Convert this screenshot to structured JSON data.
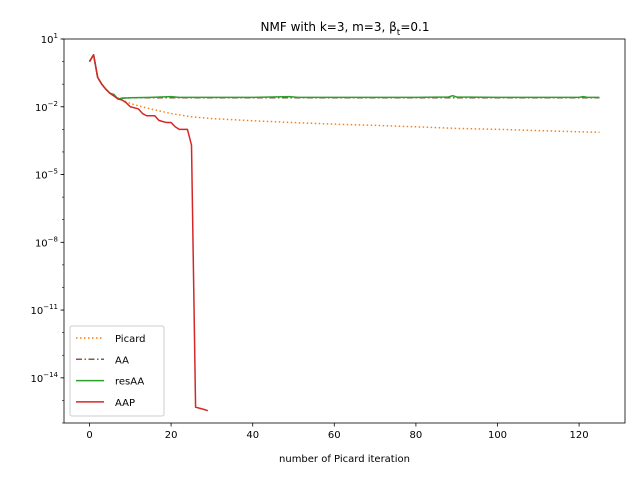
{
  "chart_data": {
    "type": "line",
    "title": "NMF with k=3, m=3,  β",
    "title_sub": "t",
    "title_tail": "=0.1",
    "xlabel": "number of Picard iteration",
    "ylabel": "",
    "yscale": "log",
    "xlim": [
      -6.25,
      131.25
    ],
    "ylim": [
      1e-16,
      10
    ],
    "xticks": [
      0,
      20,
      40,
      60,
      80,
      100,
      120
    ],
    "yticks": [
      {
        "value": 10,
        "base": "10",
        "exp": "1"
      },
      {
        "value": 0.01,
        "base": "10",
        "exp": "−2"
      },
      {
        "value": 1e-05,
        "base": "10",
        "exp": "−5"
      },
      {
        "value": 1e-08,
        "base": "10",
        "exp": "−8"
      },
      {
        "value": 1e-11,
        "base": "10",
        "exp": "−11"
      },
      {
        "value": 1e-14,
        "base": "10",
        "exp": "−14"
      }
    ],
    "grid": false,
    "legend_position": "lower-left",
    "series": [
      {
        "name": "Picard",
        "color": "#ff7f0e",
        "dash": "dotted",
        "points": [
          [
            0,
            1.0
          ],
          [
            1,
            2.0
          ],
          [
            2,
            0.2
          ],
          [
            3,
            0.1
          ],
          [
            4,
            0.06
          ],
          [
            5,
            0.04
          ],
          [
            6,
            0.03
          ],
          [
            8,
            0.02
          ],
          [
            10,
            0.014
          ],
          [
            12,
            0.011
          ],
          [
            15,
            0.008
          ],
          [
            20,
            0.005
          ],
          [
            25,
            0.0036
          ],
          [
            30,
            0.003
          ],
          [
            40,
            0.0024
          ],
          [
            50,
            0.002
          ],
          [
            60,
            0.0017
          ],
          [
            70,
            0.0015
          ],
          [
            80,
            0.0013
          ],
          [
            90,
            0.0011
          ],
          [
            100,
            0.001
          ],
          [
            110,
            0.00088
          ],
          [
            120,
            0.00078
          ],
          [
            125,
            0.00074
          ]
        ]
      },
      {
        "name": "AA",
        "color": "#8c564b",
        "dash": "dashdot",
        "points": [
          [
            0,
            1.0
          ],
          [
            1,
            2.0
          ],
          [
            2,
            0.2
          ],
          [
            3,
            0.1
          ],
          [
            4,
            0.06
          ],
          [
            5,
            0.04
          ],
          [
            6,
            0.03
          ],
          [
            7,
            0.022
          ],
          [
            8,
            0.024
          ],
          [
            10,
            0.025
          ],
          [
            20,
            0.025
          ],
          [
            30,
            0.025
          ],
          [
            40,
            0.025
          ],
          [
            50,
            0.025
          ],
          [
            60,
            0.025
          ],
          [
            70,
            0.025
          ],
          [
            80,
            0.025
          ],
          [
            90,
            0.025
          ],
          [
            100,
            0.025
          ],
          [
            110,
            0.025
          ],
          [
            120,
            0.025
          ],
          [
            125,
            0.025
          ]
        ]
      },
      {
        "name": "resAA",
        "color": "#2ca02c",
        "dash": "solid",
        "points": [
          [
            0,
            1.0
          ],
          [
            1,
            2.0
          ],
          [
            2,
            0.2
          ],
          [
            3,
            0.1
          ],
          [
            4,
            0.06
          ],
          [
            5,
            0.04
          ],
          [
            6,
            0.035
          ],
          [
            7,
            0.022
          ],
          [
            8,
            0.024
          ],
          [
            10,
            0.025
          ],
          [
            15,
            0.026
          ],
          [
            20,
            0.028
          ],
          [
            22,
            0.026
          ],
          [
            30,
            0.026
          ],
          [
            40,
            0.026
          ],
          [
            49,
            0.028
          ],
          [
            51,
            0.026
          ],
          [
            60,
            0.026
          ],
          [
            70,
            0.026
          ],
          [
            80,
            0.026
          ],
          [
            88,
            0.027
          ],
          [
            89,
            0.031
          ],
          [
            90,
            0.027
          ],
          [
            100,
            0.026
          ],
          [
            110,
            0.026
          ],
          [
            120,
            0.026
          ],
          [
            121,
            0.028
          ],
          [
            122,
            0.026
          ],
          [
            125,
            0.026
          ]
        ]
      },
      {
        "name": "AAP",
        "color": "#d62728",
        "dash": "solid",
        "points": [
          [
            0,
            1.0
          ],
          [
            1,
            2.0
          ],
          [
            2,
            0.2
          ],
          [
            3,
            0.1
          ],
          [
            4,
            0.06
          ],
          [
            5,
            0.04
          ],
          [
            6,
            0.03
          ],
          [
            7,
            0.022
          ],
          [
            8,
            0.02
          ],
          [
            9,
            0.015
          ],
          [
            10,
            0.01
          ],
          [
            11,
            0.009
          ],
          [
            12,
            0.008
          ],
          [
            13,
            0.005
          ],
          [
            14,
            0.004
          ],
          [
            15,
            0.004
          ],
          [
            16,
            0.004
          ],
          [
            17,
            0.0025
          ],
          [
            18,
            0.0022
          ],
          [
            19,
            0.002
          ],
          [
            20,
            0.002
          ],
          [
            21,
            0.0013
          ],
          [
            22,
            0.001
          ],
          [
            23,
            0.001
          ],
          [
            24,
            0.001
          ],
          [
            25,
            0.0002
          ],
          [
            26,
            5e-16
          ],
          [
            27,
            4.5e-16
          ],
          [
            28,
            4e-16
          ],
          [
            29,
            3.5e-16
          ]
        ]
      }
    ]
  }
}
